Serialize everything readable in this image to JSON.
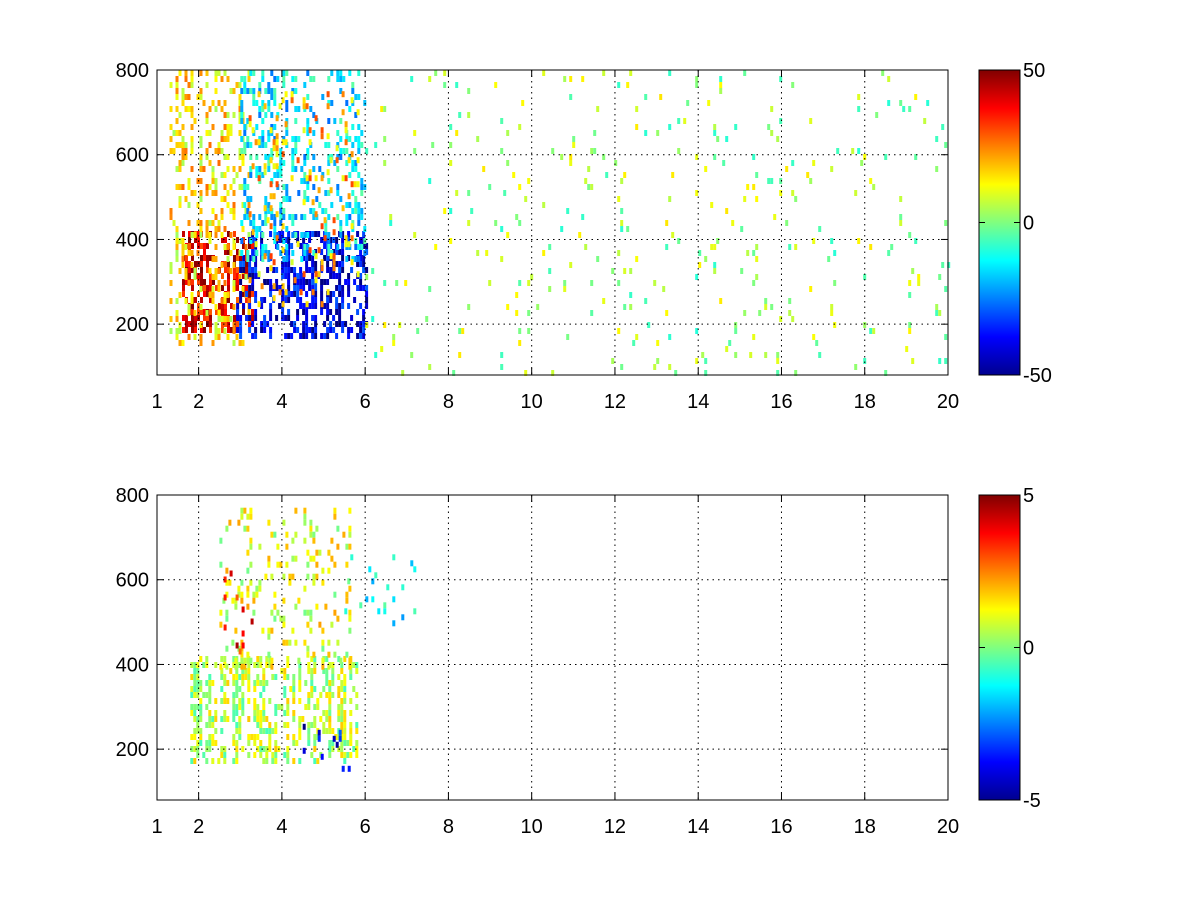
{
  "chart_data": [
    {
      "type": "heatmap",
      "title": "",
      "xlabel": "",
      "ylabel": "",
      "xlim": [
        1,
        20
      ],
      "ylim": [
        80,
        800
      ],
      "grid": true,
      "x_ticks": [
        "1",
        "2",
        "4",
        "6",
        "8",
        "10",
        "12",
        "14",
        "16",
        "18",
        "20"
      ],
      "y_ticks": [
        "200",
        "400",
        "600",
        "800"
      ],
      "colorbar": {
        "colormap": "jet",
        "min": -50,
        "max": 50,
        "tick_labels": [
          "50",
          "0",
          "-50"
        ],
        "position": "right"
      },
      "clusters": [
        {
          "x": [
            1.6,
            3.3
          ],
          "y": [
            180,
            420
          ],
          "value": 40,
          "density": 0.6
        },
        {
          "x": [
            1.3,
            3.2
          ],
          "y": [
            150,
            800
          ],
          "value": 15,
          "density": 0.3
        },
        {
          "x": [
            2.9,
            6.0
          ],
          "y": [
            170,
            420
          ],
          "value": -40,
          "density": 0.6
        },
        {
          "x": [
            3.0,
            6.0
          ],
          "y": [
            350,
            800
          ],
          "value": -15,
          "density": 0.3
        },
        {
          "x": [
            3.2,
            5.8
          ],
          "y": [
            250,
            750
          ],
          "value": 20,
          "density": 0.12
        },
        {
          "x": [
            6.0,
            20.0
          ],
          "y": [
            80,
            800
          ],
          "value": 3,
          "density": 0.04
        }
      ]
    },
    {
      "type": "heatmap",
      "title": "",
      "xlabel": "",
      "ylabel": "",
      "xlim": [
        1,
        20
      ],
      "ylim": [
        80,
        800
      ],
      "grid": true,
      "x_ticks": [
        "1",
        "2",
        "4",
        "6",
        "8",
        "10",
        "12",
        "14",
        "16",
        "18",
        "20"
      ],
      "y_ticks": [
        "200",
        "400",
        "600",
        "800"
      ],
      "colorbar": {
        "colormap": "jet",
        "min": -5,
        "max": 5,
        "tick_labels": [
          "5",
          "0",
          "-5"
        ],
        "position": "right"
      },
      "clusters": [
        {
          "x": [
            1.8,
            5.8
          ],
          "y": [
            170,
            420
          ],
          "value": 0.6,
          "density": 0.55
        },
        {
          "x": [
            2.5,
            5.6
          ],
          "y": [
            400,
            770
          ],
          "value": 1.0,
          "density": 0.18
        },
        {
          "x": [
            2.6,
            3.3
          ],
          "y": [
            350,
            650
          ],
          "value": 3.8,
          "density": 0.1
        },
        {
          "x": [
            5.5,
            7.2
          ],
          "y": [
            500,
            660
          ],
          "value": -1.2,
          "density": 0.08
        },
        {
          "x": [
            4.5,
            5.6
          ],
          "y": [
            110,
            260
          ],
          "value": -4.0,
          "density": 0.05
        }
      ]
    }
  ]
}
